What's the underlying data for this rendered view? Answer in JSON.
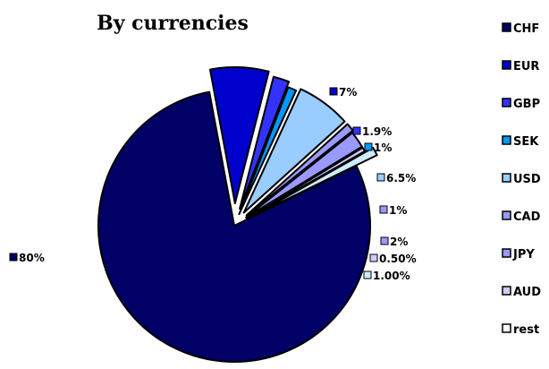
{
  "chart_data": {
    "type": "pie",
    "title": "By currencies",
    "slices": [
      {
        "name": "CHF",
        "label": "80%",
        "value": 80,
        "color": "#000066"
      },
      {
        "name": "EUR",
        "label": "7%",
        "value": 7,
        "color": "#0000CC"
      },
      {
        "name": "GBP",
        "label": "1.9%",
        "value": 1.9,
        "color": "#3333FF"
      },
      {
        "name": "SEK",
        "label": "1%",
        "value": 1,
        "color": "#0099FF"
      },
      {
        "name": "USD",
        "label": "6.5%",
        "value": 6.5,
        "color": "#99CCFF"
      },
      {
        "name": "CAD",
        "label": "1%",
        "value": 1,
        "color": "#9999FF"
      },
      {
        "name": "JPY",
        "label": "2%",
        "value": 2,
        "color": "#9999FF"
      },
      {
        "name": "AUD",
        "label": "0.50%",
        "value": 0.5,
        "color": "#CCCCFF"
      },
      {
        "name": "rest",
        "label": "1.00%",
        "value": 1,
        "color": "#CCECFF"
      }
    ],
    "legend": {
      "position": "right",
      "items": [
        {
          "label": "CHF",
          "color": "#000066"
        },
        {
          "label": "EUR",
          "color": "#0000CC"
        },
        {
          "label": "GBP",
          "color": "#3333FF"
        },
        {
          "label": "SEK",
          "color": "#0099FF"
        },
        {
          "label": "USD",
          "color": "#99CCFF"
        },
        {
          "label": "CAD",
          "color": "#9999FF"
        },
        {
          "label": "JPY",
          "color": "#9999FF"
        },
        {
          "label": "AUD",
          "color": "#CCCCFF"
        },
        {
          "label": "rest",
          "color": "#FFFFFF"
        }
      ]
    }
  }
}
